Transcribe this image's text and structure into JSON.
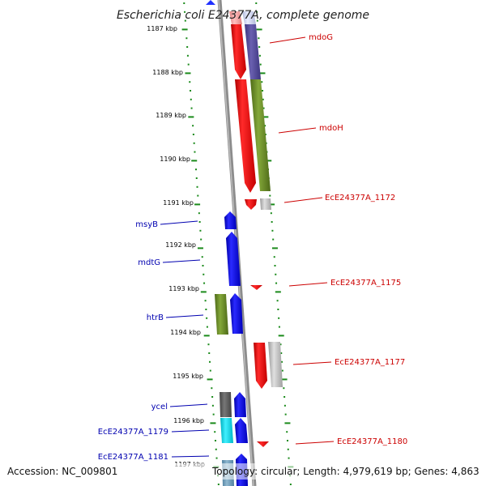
{
  "title": "Escherichia coli E24377A, complete genome",
  "footer": {
    "accession": "Accession: NC_009801",
    "summary": "Topology: circular; Length: 4,979,619 bp; Genes: 4,863"
  },
  "axis_labels": [
    "1187 kbp",
    "1188 kbp",
    "1189 kbp",
    "1190 kbp",
    "1191 kbp",
    "1192 kbp",
    "1193 kbp",
    "1194 kbp",
    "1195 kbp",
    "1196 kbp",
    "1197 kbp"
  ],
  "right_labels": [
    "mdoG",
    "mdoH",
    "EcE24377A_1172",
    "EcE24377A_1175",
    "EcE24377A_1177",
    "EcE24377A_1180"
  ],
  "left_labels": [
    "msyB",
    "mdtG",
    "htrB",
    "ycel",
    "EcE24377A_1179",
    "EcE24377A_1181"
  ],
  "colors": {
    "forward_gene": "#ff0000",
    "reverse_gene": "#0000ff",
    "cog_purple": "#5a4f9e",
    "cog_olive": "#6b8e23",
    "cog_gray": "#b8b8b8",
    "cog_cyan": "#00d8e8",
    "tick_green": "#1a8a1a",
    "backbone": "#888888"
  }
}
